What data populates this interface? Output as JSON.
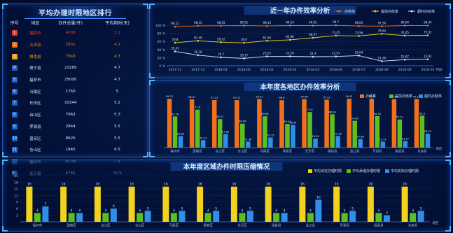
{
  "colors": {
    "orange": "#f0701c",
    "green": "#5bbf1f",
    "blue": "#2f8fe6",
    "yellow": "#f2d21c",
    "red": "#e53b2c",
    "gold": "#e8a219",
    "text": "#cfe6ff"
  },
  "rank_panel": {
    "title": "平均办理时限地区排行",
    "headers": [
      "序号",
      "地区",
      "办件总量(件)",
      "平均用时(天)"
    ],
    "rows": [
      {
        "no": "1",
        "region": "福鼎市",
        "count": "4509",
        "avg": "3.1"
      },
      {
        "no": "2",
        "region": "古田县",
        "count": "2832",
        "avg": "4.2"
      },
      {
        "no": "3",
        "region": "屏南县",
        "count": "7343",
        "avg": "4.3"
      },
      {
        "no": "4",
        "region": "周宁县",
        "count": "23289",
        "avg": "4.7"
      },
      {
        "no": "5",
        "region": "福安市",
        "count": "25000",
        "avg": "4.7"
      },
      {
        "no": "6",
        "region": "马尾区",
        "count": "1760",
        "avg": "5"
      },
      {
        "no": "7",
        "region": "长乐区",
        "count": "10244",
        "avg": "5.2"
      },
      {
        "no": "8",
        "region": "台山区",
        "count": "7963",
        "avg": "5.3"
      },
      {
        "no": "9",
        "region": "罗源县",
        "count": "2844",
        "avg": "5.5"
      },
      {
        "no": "10",
        "region": "晋安区",
        "count": "8925",
        "avg": "5.5"
      },
      {
        "no": "11",
        "region": "仓山区",
        "count": "1845",
        "avg": "6.5"
      },
      {
        "no": "12",
        "region": "福州市",
        "count": "36740",
        "avg": "7.4"
      },
      {
        "no": "13",
        "region": "连江县",
        "count": "6765",
        "avg": "10.9"
      }
    ]
  },
  "chart_data": [
    {
      "type": "line",
      "title": "近一年办件效率分析",
      "x": [
        "2017-11",
        "2017-12",
        "2018-01",
        "2018-02",
        "2018-03",
        "2018-04",
        "2018-05",
        "2018-06",
        "2018-07",
        "2018-08",
        "2018-09",
        "2018-10"
      ],
      "xlabel": "时间",
      "ylim": [
        0,
        100
      ],
      "yticks": [
        "0 %",
        "20 %",
        "40 %",
        "60 %",
        "80 %",
        "100 %"
      ],
      "series": [
        {
          "name": "办结率",
          "color": "#f0701c",
          "values": [
            96.22,
            98.45,
            98.55,
            99.01,
            98.15,
            99.14,
            99.02,
            99.7,
            98.05,
            97.56,
            99.04,
            99.04
          ]
        },
        {
          "name": "提前办结率",
          "color": "#f2d21c",
          "values": [
            56.8,
            61.49,
            58.12,
            56.6,
            61.56,
            63.96,
            68.97,
            74.45,
            73.56,
            78.64,
            74.45,
            75.01
          ]
        },
        {
          "name": "超时办结率",
          "color": "#cfe6ff",
          "values": [
            35.41,
            26.26,
            20.7,
            18.17,
            23.25,
            23.29,
            22.4,
            22.91,
            25.04,
            11.26,
            15.07,
            15.91
          ]
        }
      ]
    },
    {
      "type": "bar",
      "title": "本年度各地区办件效率分析",
      "categories": [
        "福州市",
        "鼓楼区",
        "台江区",
        "仓山区",
        "马尾区",
        "晋安区",
        "长乐区",
        "闽侯县",
        "连江县",
        "罗源县",
        "闽清县",
        "永泰县"
      ],
      "xlabel": "地区",
      "ylim": [
        0,
        100
      ],
      "series": [
        {
          "name": "办结率",
          "color": "#f0701c",
          "values": [
            99.71,
            98.57,
            97.12,
            97.12,
            99.37,
            96.9,
            99.06,
            97.92,
            99.91,
            99.9,
            98.98,
            99.14
          ]
        },
        {
          "name": "提前办结率",
          "color": "#5bbf1f",
          "values": [
            63.76,
            77.6,
            58.27,
            48.99,
            63.98,
            48.44,
            72.6,
            68.04,
            54.89,
            64.33,
            57.51,
            65.3
          ]
        },
        {
          "name": "超时办结率",
          "color": "#2f8fe6",
          "values": [
            23.63,
            15.31,
            27.82,
            12.38,
            20.75,
            46.24,
            18.56,
            23.78,
            17.68,
            12.21,
            13.57,
            28.75
          ]
        }
      ]
    },
    {
      "type": "bar",
      "title": "本年度区域办件时限压缩情况",
      "categories": [
        "福州市",
        "鼓楼区",
        "台江区",
        "仓山区",
        "马尾区",
        "晋安区",
        "长乐区",
        "闽侯县",
        "连江县",
        "罗源县",
        "闽清县",
        "永泰县"
      ],
      "xlabel": "地区",
      "ylim": [
        0,
        21
      ],
      "ylabel": "天",
      "series": [
        {
          "name": "平均法定办理时限",
          "color": "#f2d21c",
          "values": [
            16,
            16,
            16,
            16,
            16,
            16,
            16,
            16,
            16,
            16,
            16,
            16
          ]
        },
        {
          "name": "平均承诺办理时限",
          "color": "#5bbf1f",
          "values": [
            4,
            4,
            4,
            4,
            4,
            4,
            4,
            4,
            4,
            4,
            4,
            4
          ]
        },
        {
          "name": "平均实际办理时限",
          "color": "#2f8fe6",
          "values": [
            7,
            4,
            6,
            5,
            5,
            5,
            5,
            4,
            10,
            5,
            3,
            5
          ]
        }
      ]
    }
  ]
}
